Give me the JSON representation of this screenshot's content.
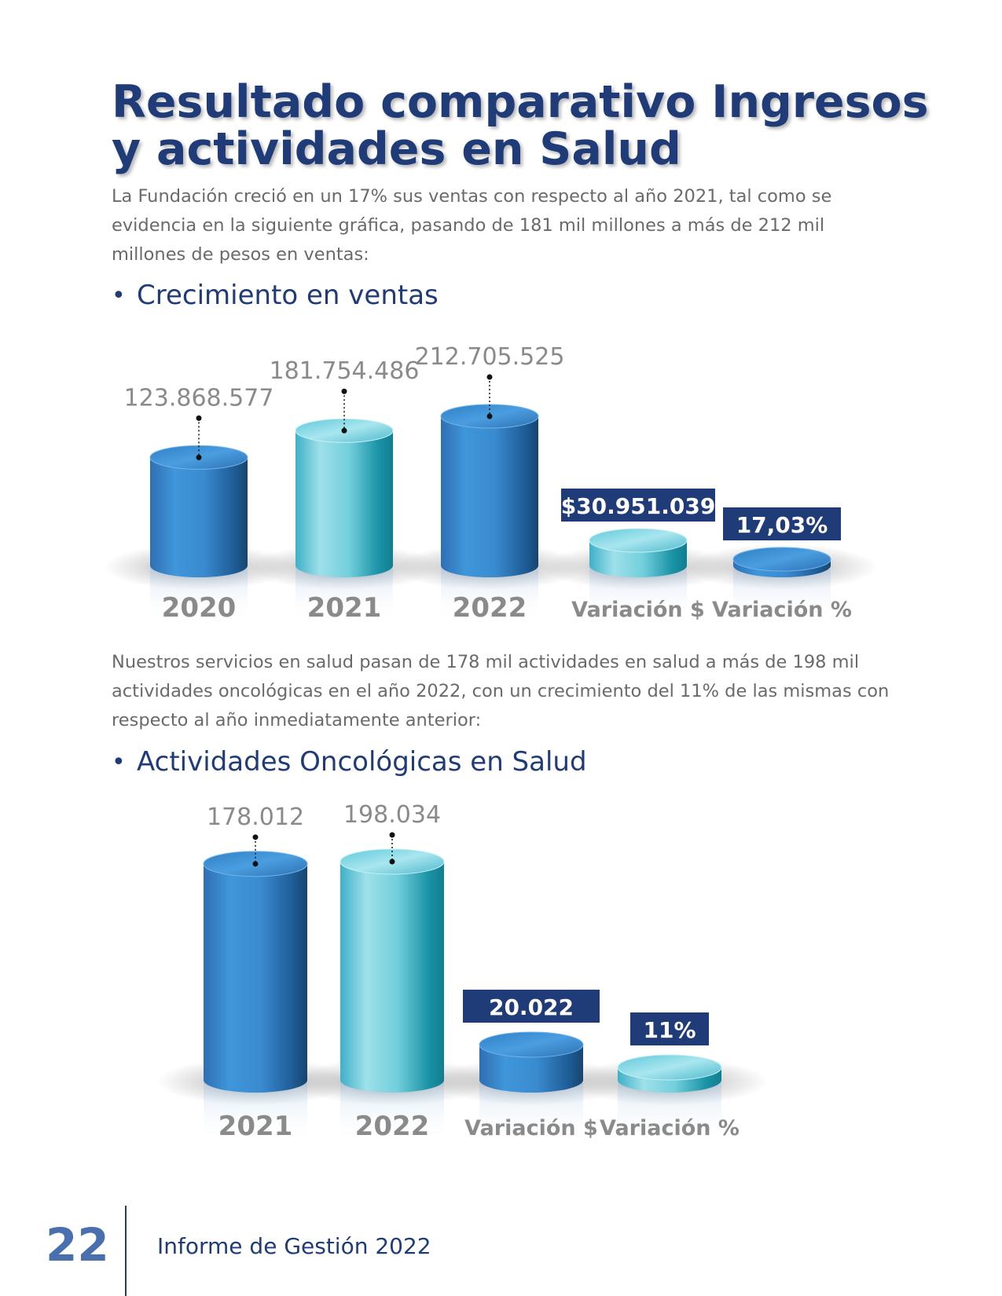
{
  "page": {
    "title": "Resultado comparativo Ingresos y actividades en Salud",
    "intro": "La Fundación creció en un 17% sus ventas con respecto al año 2021, tal como se evidencia en la siguiente gráfica, pasando de 181 mil millones a más de 212 mil millones de pesos en ventas:",
    "sales_heading": "Crecimiento en ventas",
    "middle_text": "Nuestros servicios en salud pasan de 178 mil actividades en salud a más de 198 mil actividades oncológicas en el año 2022, con un crecimiento del 11% de las mismas con respecto al año inmediatamente anterior:",
    "activities_heading": "Actividades Oncológicas en Salud",
    "bullet": "•"
  },
  "footer": {
    "page_number": "22",
    "report_title": "Informe de Gestión 2022"
  },
  "colors": {
    "navy": "#1f3b78",
    "blue": "#3f90d6",
    "turquoise": "#5cc7d8",
    "label_gray": "#8a8a8a"
  },
  "chart_data": [
    {
      "type": "bar",
      "style": "3d-cylinder",
      "categories": [
        "2020",
        "2021",
        "2022",
        "Variación $",
        "Variación %"
      ],
      "values": [
        123868577,
        181754486,
        212705525,
        30951039,
        17.03
      ],
      "value_labels": [
        "123.868.577",
        "181.754.486",
        "212.705.525",
        "$30.951.039",
        "17,03%"
      ],
      "label_style": [
        "plain",
        "plain",
        "plain",
        "boxed",
        "boxed"
      ],
      "colors": [
        "blue",
        "turquoise",
        "blue",
        "turquoise",
        "blue"
      ]
    },
    {
      "type": "bar",
      "style": "3d-cylinder",
      "categories": [
        "2021",
        "2022",
        "Variación $",
        "Variación %"
      ],
      "values": [
        178012,
        198034,
        20022,
        11
      ],
      "value_labels": [
        "178.012",
        "198.034",
        "20.022",
        "11%"
      ],
      "label_style": [
        "plain",
        "plain",
        "boxed",
        "boxed"
      ],
      "colors": [
        "blue",
        "turquoise",
        "blue",
        "turquoise"
      ]
    }
  ]
}
